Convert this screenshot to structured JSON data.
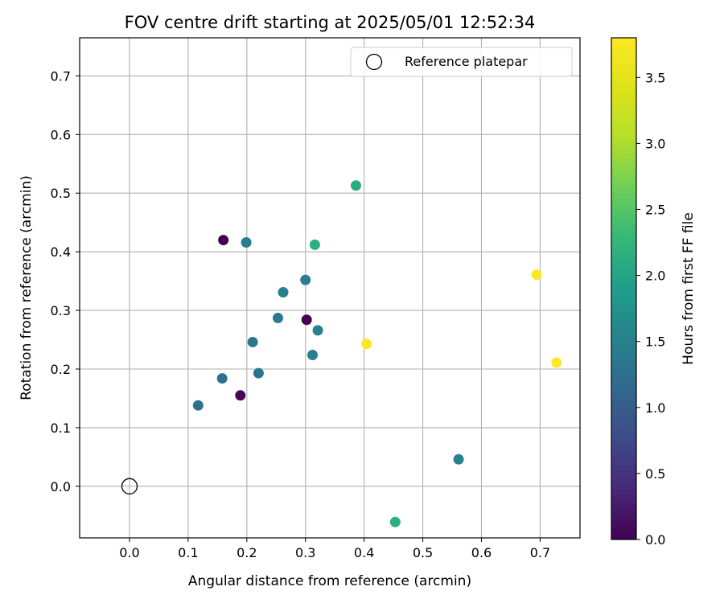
{
  "chart_data": {
    "type": "scatter",
    "title": "FOV centre drift starting at 2025/05/01 12:52:34",
    "xlabel": "Angular distance from reference (arcmin)",
    "ylabel": "Rotation from reference (arcmin)",
    "xlim": [
      -0.085,
      0.768
    ],
    "ylim": [
      -0.088,
      0.765
    ],
    "xticks": [
      0.0,
      0.1,
      0.2,
      0.3,
      0.4,
      0.5,
      0.6,
      0.7
    ],
    "xtick_labels": [
      "0.0",
      "0.1",
      "0.2",
      "0.3",
      "0.4",
      "0.5",
      "0.6",
      "0.7"
    ],
    "yticks": [
      0.0,
      0.1,
      0.2,
      0.3,
      0.4,
      0.5,
      0.6,
      0.7
    ],
    "ytick_labels": [
      "0.0",
      "0.1",
      "0.2",
      "0.3",
      "0.4",
      "0.5",
      "0.6",
      "0.7"
    ],
    "grid": true,
    "legend": {
      "placement": "top-right",
      "entries": [
        {
          "label": "Reference platepar",
          "marker": "open-circle",
          "color": "#000000"
        }
      ]
    },
    "reference_point": {
      "x": 0.0,
      "y": 0.0
    },
    "points": [
      {
        "x": 0.16,
        "y": 0.42,
        "hours": 0.0
      },
      {
        "x": 0.302,
        "y": 0.284,
        "hours": 0.0
      },
      {
        "x": 0.189,
        "y": 0.155,
        "hours": 0.05
      },
      {
        "x": 0.117,
        "y": 0.138,
        "hours": 1.25
      },
      {
        "x": 0.158,
        "y": 0.184,
        "hours": 1.3
      },
      {
        "x": 0.22,
        "y": 0.193,
        "hours": 1.35
      },
      {
        "x": 0.21,
        "y": 0.246,
        "hours": 1.35
      },
      {
        "x": 0.253,
        "y": 0.287,
        "hours": 1.4
      },
      {
        "x": 0.199,
        "y": 0.416,
        "hours": 1.45
      },
      {
        "x": 0.262,
        "y": 0.331,
        "hours": 1.45
      },
      {
        "x": 0.3,
        "y": 0.352,
        "hours": 1.45
      },
      {
        "x": 0.312,
        "y": 0.224,
        "hours": 1.45
      },
      {
        "x": 0.321,
        "y": 0.266,
        "hours": 1.5
      },
      {
        "x": 0.561,
        "y": 0.046,
        "hours": 1.5
      },
      {
        "x": 0.386,
        "y": 0.513,
        "hours": 2.1
      },
      {
        "x": 0.316,
        "y": 0.412,
        "hours": 2.15
      },
      {
        "x": 0.453,
        "y": -0.061,
        "hours": 2.15
      },
      {
        "x": 0.404,
        "y": 0.243,
        "hours": 3.8
      },
      {
        "x": 0.694,
        "y": 0.361,
        "hours": 3.8
      },
      {
        "x": 0.728,
        "y": 0.211,
        "hours": 3.8
      }
    ],
    "colorbar": {
      "label": "Hours from first FF file",
      "colormap": "viridis",
      "range": [
        0.0,
        3.8
      ],
      "ticks": [
        0.0,
        0.5,
        1.0,
        1.5,
        2.0,
        2.5,
        3.0,
        3.5
      ],
      "tick_labels": [
        "0.0",
        "0.5",
        "1.0",
        "1.5",
        "2.0",
        "2.5",
        "3.0",
        "3.5"
      ]
    },
    "colors": {
      "grid": "#b0b0b0",
      "axes": "#000000",
      "legend_border": "#cccccc"
    }
  }
}
